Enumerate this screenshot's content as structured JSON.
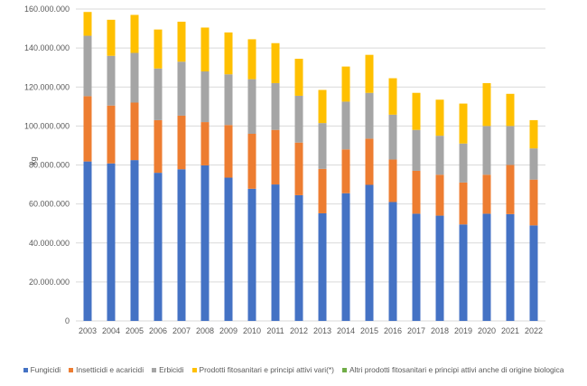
{
  "chart_data": {
    "type": "bar",
    "stacked": true,
    "title": "",
    "xlabel": "",
    "ylabel": "kg",
    "ylim": [
      0,
      160000000
    ],
    "yticks": [
      "0",
      "20.000.000",
      "40.000.000",
      "60.000.000",
      "80.000.000",
      "100.000.000",
      "120.000.000",
      "140.000.000",
      "160.000.000"
    ],
    "grid": true,
    "legend_position": "bottom",
    "categories": [
      "2003",
      "2004",
      "2005",
      "2006",
      "2007",
      "2008",
      "2009",
      "2010",
      "2011",
      "2012",
      "2013",
      "2014",
      "2015",
      "2016",
      "2017",
      "2018",
      "2019",
      "2020",
      "2021",
      "2022"
    ],
    "series": [
      {
        "name": "Fungicidi",
        "color": "#4472C4",
        "values": [
          81800000,
          80800000,
          82500000,
          76000000,
          77800000,
          79800000,
          73500000,
          67800000,
          70000000,
          64500000,
          55200000,
          65500000,
          69800000,
          61000000,
          55000000,
          54000000,
          49500000,
          55000000,
          54800000,
          49000000
        ]
      },
      {
        "name": "Insetticidi e acaricidi",
        "color": "#ED7D31",
        "values": [
          33500000,
          29700000,
          29500000,
          27000000,
          27500000,
          22200000,
          27000000,
          28200000,
          28000000,
          27000000,
          22800000,
          22500000,
          23700000,
          21800000,
          22000000,
          21000000,
          21500000,
          20000000,
          25200000,
          23500000
        ]
      },
      {
        "name": "Erbicidi",
        "color": "#A5A5A5",
        "values": [
          31000000,
          25500000,
          25500000,
          26500000,
          27700000,
          26000000,
          26000000,
          28000000,
          24000000,
          24000000,
          23500000,
          24500000,
          23500000,
          23000000,
          21000000,
          20000000,
          20000000,
          25000000,
          20000000,
          16000000
        ]
      },
      {
        "name": "Prodotti fitosanitari e principi attivi vari(*)",
        "color": "#FFC000",
        "values": [
          12200000,
          18500000,
          19500000,
          20000000,
          20500000,
          22500000,
          21500000,
          20500000,
          20500000,
          19000000,
          17000000,
          18000000,
          19500000,
          18700000,
          19000000,
          18500000,
          20500000,
          22000000,
          16500000,
          14500000
        ]
      },
      {
        "name": "Altri prodotti fitosanitari e principi attivi anche di origine biologica",
        "color": "#70AD47",
        "values": [
          0,
          0,
          0,
          0,
          0,
          0,
          0,
          0,
          0,
          0,
          0,
          0,
          0,
          0,
          0,
          0,
          0,
          0,
          0,
          0
        ]
      }
    ]
  }
}
